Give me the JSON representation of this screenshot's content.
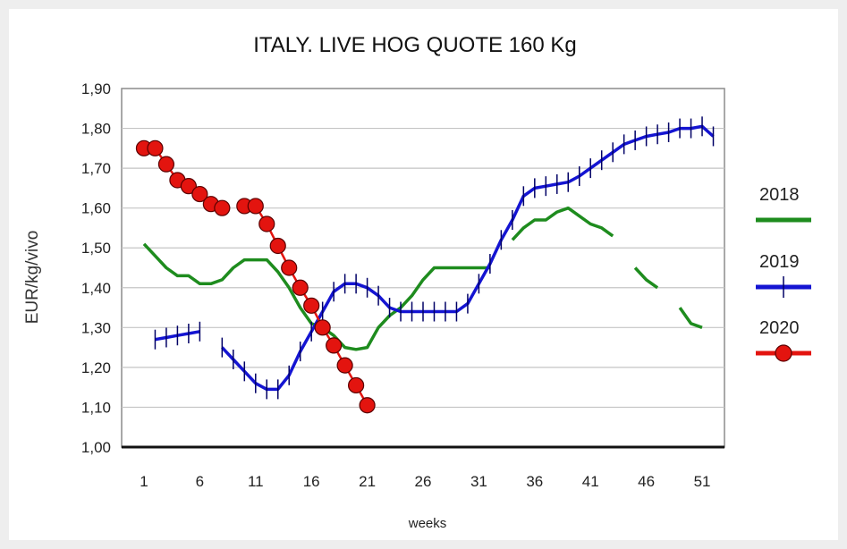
{
  "chart_data": {
    "type": "line",
    "title": "ITALY. LIVE HOG QUOTE 160 Kg",
    "xlabel": "weeks",
    "ylabel": "EUR/kg/vivo",
    "ylim": [
      1.0,
      1.9
    ],
    "yticks": [
      "1,00",
      "1,10",
      "1,20",
      "1,30",
      "1,40",
      "1,50",
      "1,60",
      "1,70",
      "1,80",
      "1,90"
    ],
    "xticks": [
      "1",
      "6",
      "11",
      "16",
      "21",
      "26",
      "31",
      "36",
      "41",
      "46",
      "51"
    ],
    "grid": true,
    "legend": "right",
    "series": [
      {
        "name": "2018",
        "color": "#1e8c1e",
        "marker": "none",
        "x": [
          1,
          2,
          3,
          4,
          5,
          6,
          7,
          8,
          9,
          10,
          11,
          12,
          13,
          14,
          15,
          16,
          17,
          18,
          19,
          20,
          21,
          22,
          23,
          24,
          25,
          26,
          27,
          28,
          29,
          30,
          31,
          32,
          null,
          34,
          35,
          36,
          37,
          38,
          39,
          40,
          41,
          42,
          43,
          null,
          45,
          46,
          47,
          null,
          49,
          50,
          51
        ],
        "values": [
          1.51,
          1.48,
          1.45,
          1.43,
          1.43,
          1.41,
          1.41,
          1.42,
          1.45,
          1.47,
          1.47,
          1.47,
          1.44,
          1.4,
          1.35,
          1.31,
          1.3,
          1.28,
          1.25,
          1.245,
          1.25,
          1.3,
          1.33,
          1.35,
          1.38,
          1.42,
          1.45,
          1.45,
          1.45,
          1.45,
          1.45,
          1.45,
          null,
          1.52,
          1.55,
          1.57,
          1.57,
          1.59,
          1.6,
          1.58,
          1.56,
          1.55,
          1.53,
          null,
          1.45,
          1.42,
          1.4,
          null,
          1.35,
          1.31,
          1.3
        ]
      },
      {
        "name": "2019",
        "color": "#1414d2",
        "marker": "tick",
        "x": [
          2,
          3,
          4,
          5,
          6,
          null,
          8,
          9,
          10,
          11,
          12,
          13,
          14,
          15,
          16,
          17,
          18,
          19,
          20,
          21,
          22,
          23,
          24,
          25,
          26,
          27,
          28,
          29,
          30,
          31,
          32,
          33,
          34,
          35,
          36,
          37,
          38,
          39,
          40,
          41,
          42,
          43,
          44,
          45,
          46,
          47,
          48,
          49,
          50,
          51,
          52
        ],
        "values": [
          1.27,
          1.275,
          1.28,
          1.285,
          1.29,
          null,
          1.25,
          1.22,
          1.19,
          1.16,
          1.145,
          1.145,
          1.18,
          1.24,
          1.29,
          1.34,
          1.39,
          1.41,
          1.41,
          1.4,
          1.38,
          1.35,
          1.34,
          1.34,
          1.34,
          1.34,
          1.34,
          1.34,
          1.36,
          1.41,
          1.46,
          1.52,
          1.57,
          1.63,
          1.65,
          1.655,
          1.66,
          1.665,
          1.68,
          1.7,
          1.72,
          1.74,
          1.76,
          1.77,
          1.78,
          1.785,
          1.79,
          1.8,
          1.8,
          1.805,
          1.78
        ]
      },
      {
        "name": "2020",
        "color": "#e3140f",
        "marker": "circle",
        "x": [
          1,
          2,
          3,
          4,
          5,
          6,
          7,
          8,
          null,
          10,
          11,
          12,
          13,
          14,
          15,
          16,
          17,
          18,
          19,
          20,
          21
        ],
        "values": [
          1.75,
          1.75,
          1.71,
          1.67,
          1.655,
          1.635,
          1.61,
          1.6,
          null,
          1.605,
          1.605,
          1.56,
          1.505,
          1.45,
          1.4,
          1.355,
          1.3,
          1.255,
          1.205,
          1.155,
          1.105
        ]
      }
    ]
  }
}
